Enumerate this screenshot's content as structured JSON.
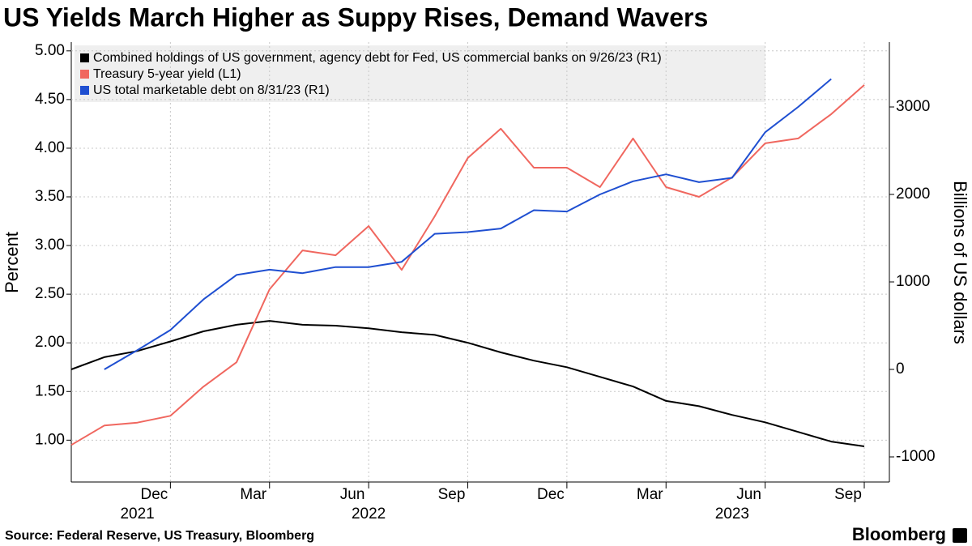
{
  "chart_data": {
    "type": "line",
    "title": "US Yields March Higher as Suppy Rises, Demand Wavers",
    "y_label": "Percent",
    "y2_label": "Billions of US dollars",
    "source": "Source: Federal Reserve, US Treasury, Bloomberg",
    "brand": "Bloomberg",
    "x": [
      "2021-09",
      "2021-10",
      "2021-11",
      "2021-12",
      "2022-01",
      "2022-02",
      "2022-03",
      "2022-04",
      "2022-05",
      "2022-06",
      "2022-07",
      "2022-08",
      "2022-09",
      "2022-10",
      "2022-11",
      "2022-12",
      "2023-01",
      "2023-02",
      "2023-03",
      "2023-04",
      "2023-05",
      "2023-06",
      "2023-07",
      "2023-08",
      "2023-09"
    ],
    "xlim": [
      "2021-09",
      "2023-09"
    ],
    "xticks": [
      {
        "value": "2021-12",
        "label": "Dec"
      },
      {
        "value": "2022-03",
        "label": "Mar"
      },
      {
        "value": "2022-06",
        "label": "Jun"
      },
      {
        "value": "2022-09",
        "label": "Sep"
      },
      {
        "value": "2022-12",
        "label": "Dec"
      },
      {
        "value": "2023-03",
        "label": "Mar"
      },
      {
        "value": "2023-06",
        "label": "Jun"
      },
      {
        "value": "2023-09",
        "label": "Sep"
      }
    ],
    "x_years": [
      {
        "value": "2021-11",
        "label": "2021"
      },
      {
        "value": "2022-06",
        "label": "2022"
      },
      {
        "value": "2023-05",
        "label": "2023"
      }
    ],
    "ylim": [
      0.57,
      5.09
    ],
    "yticks": [
      {
        "value": 1,
        "label": "1.00"
      },
      {
        "value": 1.5,
        "label": "1.50"
      },
      {
        "value": 2,
        "label": "2.00"
      },
      {
        "value": 2.5,
        "label": "2.50"
      },
      {
        "value": 3,
        "label": "3.00"
      },
      {
        "value": 3.5,
        "label": "3.50"
      },
      {
        "value": 4,
        "label": "4.00"
      },
      {
        "value": 4.5,
        "label": "4.50"
      },
      {
        "value": 5,
        "label": "5.00"
      }
    ],
    "y2lim": [
      -1287,
      3741
    ],
    "y2ticks": [
      -1000,
      0,
      1000,
      2000,
      3000
    ],
    "grid": true,
    "legend": "top-left",
    "series": [
      {
        "name": "Combined holdings of US government, agency debt for Fed, US commercial banks on 9/26/23 (R1)",
        "color": "#000000",
        "axis": "y2",
        "values": [
          0,
          140,
          210,
          320,
          435,
          510,
          555,
          510,
          500,
          470,
          425,
          395,
          305,
          195,
          100,
          25,
          -85,
          -195,
          -360,
          -420,
          -520,
          -605,
          -715,
          -825,
          -880
        ]
      },
      {
        "name": "Treasury 5-year yield (L1)",
        "color": "#f0675f",
        "values": [
          0.95,
          1.15,
          1.18,
          1.25,
          1.55,
          1.8,
          2.55,
          2.95,
          2.9,
          3.2,
          2.75,
          3.3,
          3.9,
          4.2,
          3.8,
          3.8,
          3.6,
          4.1,
          3.6,
          3.5,
          3.7,
          4.05,
          4.1,
          4.35,
          4.65
        ]
      },
      {
        "name": "US total marketable debt on 8/31/23 (R1)",
        "color": "#1f4fd1",
        "axis": "y2",
        "values": [
          null,
          0,
          220,
          450,
          800,
          1080,
          1140,
          1100,
          1170,
          1170,
          1230,
          1550,
          1570,
          1610,
          1820,
          1805,
          2000,
          2150,
          2230,
          2140,
          2190,
          2710,
          3000,
          3320,
          null
        ]
      }
    ]
  }
}
